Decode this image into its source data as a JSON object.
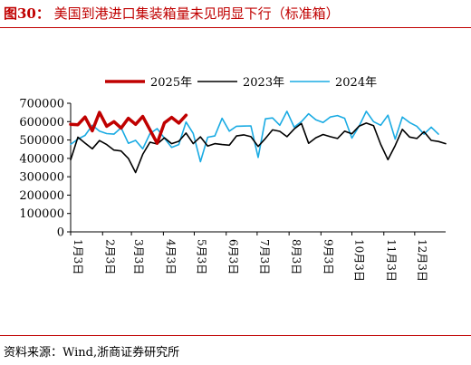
{
  "figure": {
    "label": "图30：",
    "title": "美国到港进口集装箱量未见明显下行（标准箱）"
  },
  "source": "资料来源：Wind,浙商证券研究所",
  "chart_data": {
    "type": "line",
    "title": "美国到港进口集装箱量未见明显下行（标准箱）",
    "ylim": [
      0,
      700000
    ],
    "yticks": [
      0,
      100000,
      200000,
      300000,
      400000,
      500000,
      600000,
      700000
    ],
    "x_domain_weeks": [
      0,
      52
    ],
    "x_ticks": [
      {
        "label": "1月3日",
        "week": 0
      },
      {
        "label": "2月3日",
        "week": 4.43
      },
      {
        "label": "3月3日",
        "week": 8.43
      },
      {
        "label": "4月3日",
        "week": 12.86
      },
      {
        "label": "5月3日",
        "week": 17.14
      },
      {
        "label": "6月3日",
        "week": 21.57
      },
      {
        "label": "7月3日",
        "week": 25.86
      },
      {
        "label": "8月3日",
        "week": 30.29
      },
      {
        "label": "9月3日",
        "week": 34.71
      },
      {
        "label": "10月3日",
        "week": 39
      },
      {
        "label": "11月3日",
        "week": 43.43
      },
      {
        "label": "12月3日",
        "week": 47.71
      }
    ],
    "legend_position": "top",
    "grid": false,
    "series": [
      {
        "name": "2025年",
        "color": "#c00000",
        "width": 3.5,
        "values": [
          [
            0.0,
            585000
          ],
          [
            1.0,
            583000
          ],
          [
            2.0,
            625000
          ],
          [
            3.0,
            550000
          ],
          [
            4.0,
            650000
          ],
          [
            5.0,
            575000
          ],
          [
            6.0,
            600000
          ],
          [
            7.0,
            565000
          ],
          [
            8.0,
            618000
          ],
          [
            9.0,
            585000
          ],
          [
            10.0,
            628000
          ],
          [
            11.0,
            555000
          ],
          [
            12.0,
            482000
          ],
          [
            13.0,
            593000
          ],
          [
            14.0,
            623000
          ],
          [
            15.0,
            592000
          ],
          [
            16.0,
            635000
          ]
        ]
      },
      {
        "name": "2023年",
        "color": "#000000",
        "width": 1.6,
        "values": [
          [
            0.0,
            392000
          ],
          [
            1.0,
            515000
          ],
          [
            2.0,
            483000
          ],
          [
            3.0,
            452000
          ],
          [
            4.0,
            497000
          ],
          [
            5.0,
            475000
          ],
          [
            6.0,
            445000
          ],
          [
            7.0,
            440000
          ],
          [
            8.0,
            400000
          ],
          [
            9.0,
            323000
          ],
          [
            10.0,
            422000
          ],
          [
            11.0,
            488000
          ],
          [
            12.0,
            478000
          ],
          [
            13.0,
            512000
          ],
          [
            14.0,
            480000
          ],
          [
            15.0,
            493000
          ],
          [
            16.0,
            538000
          ],
          [
            17.0,
            480000
          ],
          [
            18.0,
            517000
          ],
          [
            19.0,
            467000
          ],
          [
            20.0,
            480000
          ],
          [
            21.0,
            475000
          ],
          [
            22.0,
            472000
          ],
          [
            23.0,
            522000
          ],
          [
            24.0,
            528000
          ],
          [
            25.0,
            518000
          ],
          [
            26.0,
            465000
          ],
          [
            27.0,
            508000
          ],
          [
            28.0,
            555000
          ],
          [
            29.0,
            547000
          ],
          [
            30.0,
            518000
          ],
          [
            31.0,
            560000
          ],
          [
            32.0,
            590000
          ],
          [
            33.0,
            482000
          ],
          [
            34.0,
            512000
          ],
          [
            35.0,
            530000
          ],
          [
            36.0,
            518000
          ],
          [
            37.0,
            508000
          ],
          [
            38.0,
            548000
          ],
          [
            39.0,
            534000
          ],
          [
            40.0,
            576000
          ],
          [
            41.0,
            592000
          ],
          [
            42.0,
            578000
          ],
          [
            43.0,
            476000
          ],
          [
            44.0,
            393000
          ],
          [
            45.0,
            470000
          ],
          [
            46.0,
            558000
          ],
          [
            47.0,
            516000
          ],
          [
            48.0,
            508000
          ],
          [
            49.0,
            545000
          ],
          [
            50.0,
            498000
          ],
          [
            51.0,
            492000
          ],
          [
            52.0,
            480000
          ]
        ]
      },
      {
        "name": "2024年",
        "color": "#1aabe3",
        "width": 1.6,
        "values": [
          [
            0.0,
            476000
          ],
          [
            1.0,
            505000
          ],
          [
            2.0,
            525000
          ],
          [
            3.0,
            580000
          ],
          [
            4.0,
            548000
          ],
          [
            5.0,
            535000
          ],
          [
            6.0,
            532000
          ],
          [
            7.0,
            567000
          ],
          [
            8.0,
            482000
          ],
          [
            9.0,
            498000
          ],
          [
            10.0,
            452000
          ],
          [
            11.0,
            535000
          ],
          [
            12.0,
            562000
          ],
          [
            13.0,
            510000
          ],
          [
            14.0,
            460000
          ],
          [
            15.0,
            475000
          ],
          [
            16.0,
            598000
          ],
          [
            17.0,
            536000
          ],
          [
            18.0,
            382000
          ],
          [
            19.0,
            515000
          ],
          [
            20.0,
            522000
          ],
          [
            21.0,
            618000
          ],
          [
            22.0,
            548000
          ],
          [
            23.0,
            575000
          ],
          [
            24.0,
            576000
          ],
          [
            25.0,
            577000
          ],
          [
            26.0,
            405000
          ],
          [
            27.0,
            615000
          ],
          [
            28.0,
            620000
          ],
          [
            29.0,
            580000
          ],
          [
            30.0,
            656000
          ],
          [
            31.0,
            570000
          ],
          [
            32.0,
            600000
          ],
          [
            33.0,
            643000
          ],
          [
            34.0,
            610000
          ],
          [
            35.0,
            595000
          ],
          [
            36.0,
            625000
          ],
          [
            37.0,
            633000
          ],
          [
            38.0,
            618000
          ],
          [
            39.0,
            510000
          ],
          [
            40.0,
            576000
          ],
          [
            41.0,
            656000
          ],
          [
            42.0,
            600000
          ],
          [
            43.0,
            580000
          ],
          [
            44.0,
            635000
          ],
          [
            45.0,
            505000
          ],
          [
            46.0,
            625000
          ],
          [
            47.0,
            595000
          ],
          [
            48.0,
            575000
          ],
          [
            49.0,
            532000
          ],
          [
            50.0,
            570000
          ],
          [
            51.0,
            532000
          ]
        ]
      }
    ]
  }
}
